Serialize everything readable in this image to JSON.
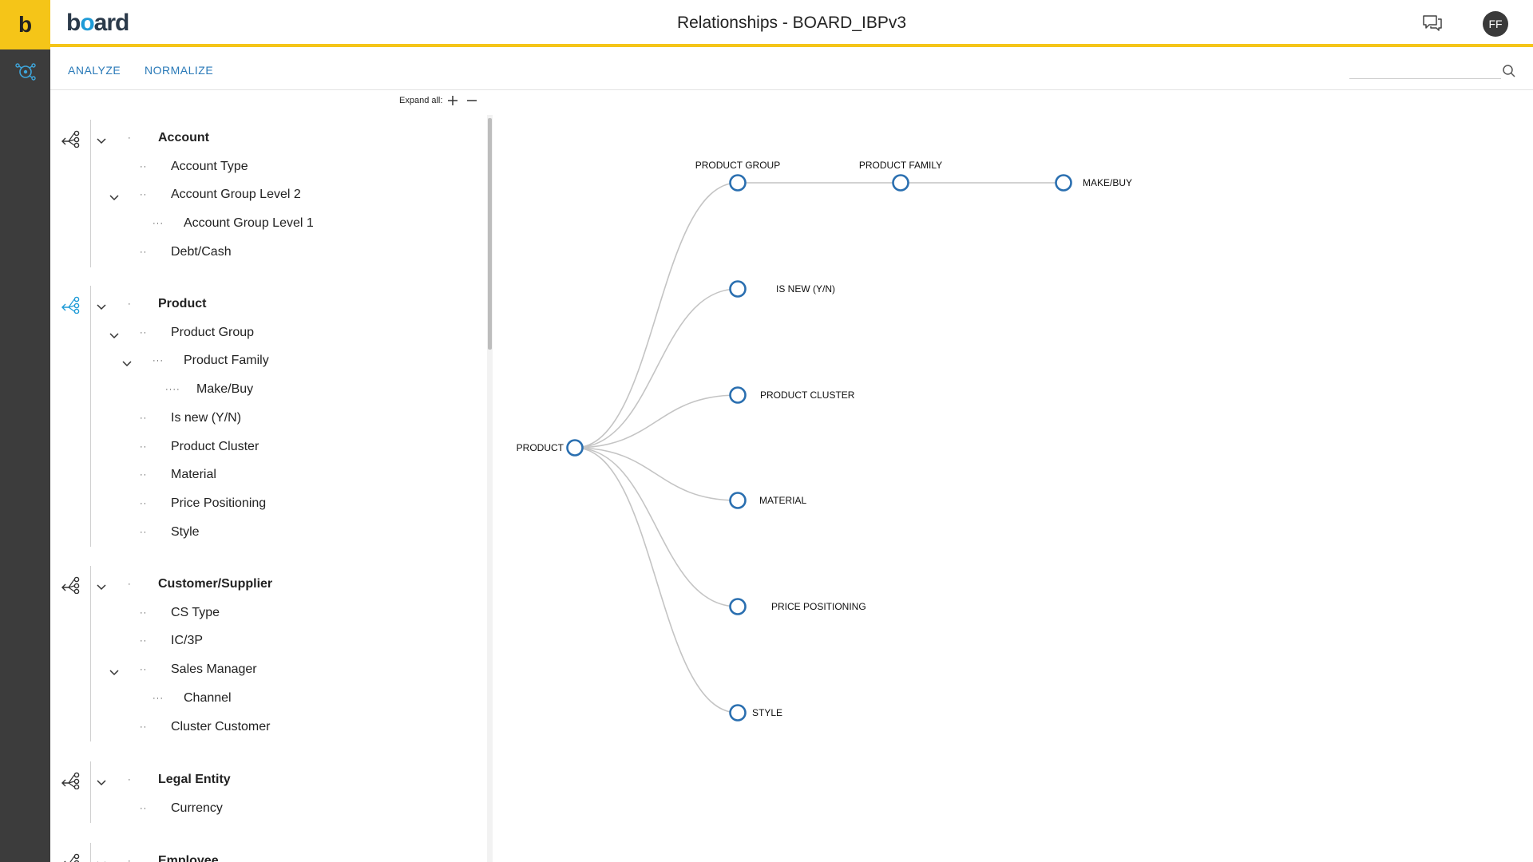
{
  "app": {
    "rail_logo": "b",
    "brand_pre": "b",
    "brand_o": "o",
    "brand_post": "ard",
    "title": "Relationships - BOARD_IBPv3",
    "avatar_initials": "FF"
  },
  "toolbar": {
    "tabs": [
      {
        "label": "ANALYZE"
      },
      {
        "label": "NORMALIZE"
      }
    ],
    "search_placeholder": ""
  },
  "tree": {
    "expand_all_label": "Expand all:",
    "groups": [
      {
        "name": "Account",
        "items": [
          {
            "label": "Account Type",
            "level": 1,
            "dots": "··",
            "expandable": false
          },
          {
            "label": "Account Group Level 2",
            "level": 1,
            "dots": "··",
            "expandable": true
          },
          {
            "label": "Account Group Level 1",
            "level": 2,
            "dots": "···",
            "expandable": false
          },
          {
            "label": "Debt/Cash",
            "level": 1,
            "dots": "··",
            "expandable": false
          }
        ]
      },
      {
        "name": "Product",
        "items": [
          {
            "label": "Product Group",
            "level": 1,
            "dots": "··",
            "expandable": true
          },
          {
            "label": "Product Family",
            "level": 2,
            "dots": "···",
            "expandable": true
          },
          {
            "label": "Make/Buy",
            "level": 3,
            "dots": "····",
            "expandable": false
          },
          {
            "label": "Is new (Y/N)",
            "level": 1,
            "dots": "··",
            "expandable": false
          },
          {
            "label": "Product Cluster",
            "level": 1,
            "dots": "··",
            "expandable": false
          },
          {
            "label": "Material",
            "level": 1,
            "dots": "··",
            "expandable": false
          },
          {
            "label": "Price Positioning",
            "level": 1,
            "dots": "··",
            "expandable": false
          },
          {
            "label": "Style",
            "level": 1,
            "dots": "··",
            "expandable": false
          }
        ]
      },
      {
        "name": "Customer/Supplier",
        "items": [
          {
            "label": "CS Type",
            "level": 1,
            "dots": "··",
            "expandable": false
          },
          {
            "label": "IC/3P",
            "level": 1,
            "dots": "··",
            "expandable": false
          },
          {
            "label": "Sales Manager",
            "level": 1,
            "dots": "··",
            "expandable": true
          },
          {
            "label": "Channel",
            "level": 2,
            "dots": "···",
            "expandable": false
          },
          {
            "label": "Cluster Customer",
            "level": 1,
            "dots": "··",
            "expandable": false
          }
        ]
      },
      {
        "name": "Legal Entity",
        "items": [
          {
            "label": "Currency",
            "level": 1,
            "dots": "··",
            "expandable": false
          }
        ]
      },
      {
        "name": "Employee",
        "items": []
      }
    ]
  },
  "graph": {
    "root": "PRODUCT",
    "nodes": {
      "product_group": "PRODUCT GROUP",
      "product_family": "PRODUCT FAMILY",
      "make_buy": "MAKE/BUY",
      "is_new": "IS NEW (Y/N)",
      "product_cluster": "PRODUCT CLUSTER",
      "material": "MATERIAL",
      "price_positioning": "PRICE POSITIONING",
      "style": "STYLE"
    },
    "colors": {
      "node_stroke": "#2a6fb0",
      "edge": "#c4c4c4"
    }
  },
  "colors": {
    "accent_yellow": "#f5c518",
    "rail_dark": "#3c3c3c",
    "link_blue": "#2a7ab8",
    "selected_icon_blue": "#1f9bd7"
  }
}
